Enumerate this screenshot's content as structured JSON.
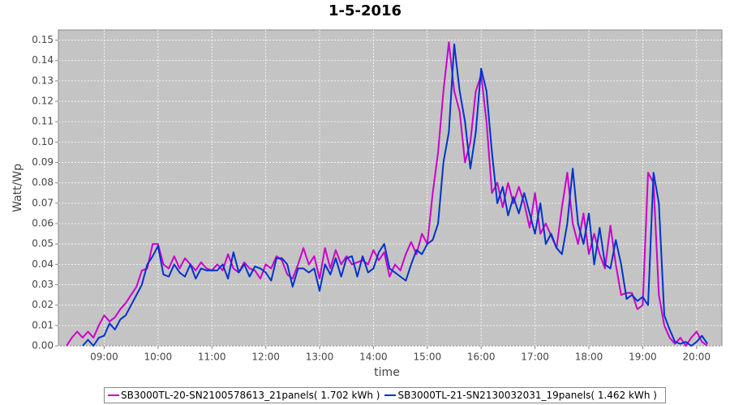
{
  "chart_data": {
    "type": "line",
    "title": "1-5-2016",
    "x_label": "time",
    "y_label": "Watt/Wp",
    "x": [
      8.3,
      8.4,
      8.5,
      8.6,
      8.7,
      8.8,
      8.9,
      9.0,
      9.1,
      9.2,
      9.3,
      9.4,
      9.5,
      9.6,
      9.7,
      9.8,
      9.9,
      10.0,
      10.1,
      10.2,
      10.3,
      10.4,
      10.5,
      10.6,
      10.7,
      10.8,
      10.9,
      11.0,
      11.1,
      11.2,
      11.3,
      11.4,
      11.5,
      11.6,
      11.7,
      11.8,
      11.9,
      12.0,
      12.1,
      12.2,
      12.3,
      12.4,
      12.5,
      12.6,
      12.7,
      12.8,
      12.9,
      13.0,
      13.1,
      13.2,
      13.3,
      13.4,
      13.5,
      13.6,
      13.7,
      13.8,
      13.9,
      14.0,
      14.1,
      14.2,
      14.3,
      14.4,
      14.5,
      14.6,
      14.7,
      14.8,
      14.9,
      15.0,
      15.1,
      15.2,
      15.3,
      15.4,
      15.5,
      15.6,
      15.7,
      15.8,
      15.9,
      16.0,
      16.1,
      16.2,
      16.3,
      16.4,
      16.5,
      16.6,
      16.7,
      16.8,
      16.9,
      17.0,
      17.1,
      17.2,
      17.3,
      17.4,
      17.5,
      17.6,
      17.7,
      17.8,
      17.9,
      18.0,
      18.1,
      18.2,
      18.3,
      18.4,
      18.5,
      18.6,
      18.7,
      18.8,
      18.9,
      19.0,
      19.1,
      19.2,
      19.3,
      19.4,
      19.5,
      19.6,
      19.7,
      19.8,
      19.9,
      20.0,
      20.1,
      20.2
    ],
    "series": [
      {
        "name": "SB3000TL-20-SN2100578613_21panels( 1.702 kWh )",
        "color": "#cc00cc",
        "values": [
          0.0,
          0.004,
          0.007,
          0.004,
          0.007,
          0.004,
          0.01,
          0.015,
          0.012,
          0.014,
          0.018,
          0.021,
          0.025,
          0.029,
          0.037,
          0.038,
          0.05,
          0.05,
          0.04,
          0.038,
          0.044,
          0.038,
          0.043,
          0.04,
          0.037,
          0.041,
          0.038,
          0.037,
          0.04,
          0.037,
          0.045,
          0.038,
          0.036,
          0.041,
          0.038,
          0.037,
          0.033,
          0.04,
          0.038,
          0.044,
          0.042,
          0.035,
          0.033,
          0.04,
          0.048,
          0.04,
          0.044,
          0.033,
          0.048,
          0.038,
          0.047,
          0.04,
          0.044,
          0.04,
          0.041,
          0.042,
          0.04,
          0.047,
          0.042,
          0.046,
          0.034,
          0.04,
          0.037,
          0.045,
          0.051,
          0.045,
          0.055,
          0.05,
          0.075,
          0.095,
          0.125,
          0.149,
          0.125,
          0.115,
          0.09,
          0.1,
          0.125,
          0.133,
          0.11,
          0.075,
          0.08,
          0.068,
          0.08,
          0.07,
          0.078,
          0.07,
          0.058,
          0.075,
          0.055,
          0.06,
          0.054,
          0.048,
          0.068,
          0.085,
          0.06,
          0.05,
          0.065,
          0.045,
          0.055,
          0.045,
          0.038,
          0.059,
          0.04,
          0.025,
          0.026,
          0.026,
          0.018,
          0.02,
          0.085,
          0.08,
          0.025,
          0.01,
          0.004,
          0.001,
          0.004,
          0.0,
          0.004,
          0.007,
          0.002,
          0.0
        ]
      },
      {
        "name": "SB3000TL-21-SN2130032031_19panels( 1.462 kWh )",
        "color": "#0033cc",
        "values": [
          null,
          null,
          null,
          0.0,
          0.003,
          0.0,
          0.004,
          0.005,
          0.011,
          0.008,
          0.013,
          0.015,
          0.02,
          0.025,
          0.03,
          0.04,
          0.044,
          0.049,
          0.035,
          0.034,
          0.04,
          0.036,
          0.034,
          0.04,
          0.033,
          0.038,
          0.037,
          0.037,
          0.037,
          0.04,
          0.033,
          0.046,
          0.036,
          0.04,
          0.034,
          0.039,
          0.038,
          0.036,
          0.032,
          0.043,
          0.043,
          0.04,
          0.029,
          0.038,
          0.038,
          0.036,
          0.038,
          0.027,
          0.04,
          0.035,
          0.043,
          0.034,
          0.043,
          0.044,
          0.034,
          0.044,
          0.036,
          0.038,
          0.046,
          0.05,
          0.038,
          0.036,
          0.034,
          0.032,
          0.04,
          0.047,
          0.045,
          0.05,
          0.052,
          0.06,
          0.09,
          0.105,
          0.148,
          0.125,
          0.11,
          0.087,
          0.105,
          0.136,
          0.125,
          0.095,
          0.07,
          0.078,
          0.064,
          0.073,
          0.065,
          0.075,
          0.065,
          0.055,
          0.07,
          0.05,
          0.055,
          0.048,
          0.045,
          0.06,
          0.087,
          0.06,
          0.05,
          0.065,
          0.04,
          0.058,
          0.04,
          0.038,
          0.052,
          0.04,
          0.023,
          0.025,
          0.022,
          0.024,
          0.02,
          0.085,
          0.07,
          0.015,
          0.008,
          0.002,
          0.001,
          0.002,
          0.0,
          0.002,
          0.005,
          0.001
        ]
      }
    ],
    "xlim": [
      8.15,
      20.47
    ],
    "xticks": [
      {
        "value": 9,
        "label": "09:00"
      },
      {
        "value": 10,
        "label": "10:00"
      },
      {
        "value": 11,
        "label": "11:00"
      },
      {
        "value": 12,
        "label": "12:00"
      },
      {
        "value": 13,
        "label": "13:00"
      },
      {
        "value": 14,
        "label": "14:00"
      },
      {
        "value": 15,
        "label": "15:00"
      },
      {
        "value": 16,
        "label": "16:00"
      },
      {
        "value": 17,
        "label": "17:00"
      },
      {
        "value": 18,
        "label": "18:00"
      },
      {
        "value": 19,
        "label": "19:00"
      },
      {
        "value": 20,
        "label": "20:00"
      }
    ],
    "ylim": [
      0,
      0.155
    ],
    "yticks": [
      {
        "value": 0,
        "label": "0.00"
      },
      0.01,
      0.02,
      0.03,
      0.04,
      0.05,
      0.06,
      0.07,
      0.08,
      0.09,
      {
        "value": 0.1,
        "label": "0.10"
      },
      0.11,
      0.12,
      0.13,
      0.14,
      0.15
    ],
    "grid": true
  }
}
